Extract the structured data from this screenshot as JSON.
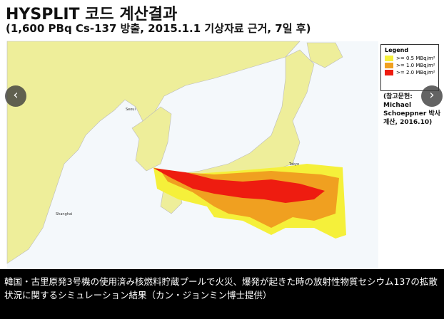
{
  "header": {
    "title": "HYSPLIT 코드 계산결과",
    "subtitle": "(1,600 PBq Cs-137 방출, 2015.1.1 기상자료 근거, 7일 후)"
  },
  "legend": {
    "title": "Legend",
    "items": [
      ">= 0.5 MBq/m²",
      ">= 1.0 MBq/m²",
      ">= 2.0 MBq/m²"
    ]
  },
  "source": "(참고문헌: Michael Schoeppner 박사 계산, 2016.10)",
  "map_labels": [
    "Seoul",
    "Shanghai",
    "Tokyo"
  ],
  "caption": "韓国・古里原発3号機の使用済み核燃料貯蔵プールで火災、爆発が起きた時の放射性物質セシウム137の拡散状況に関するシミュレーション結果（カン・ジョンミン博士提供）"
}
